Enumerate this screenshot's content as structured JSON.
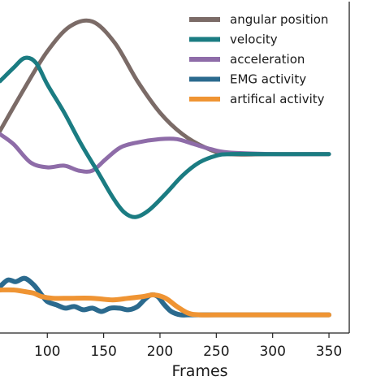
{
  "chart_data": {
    "type": "line",
    "xlabel": "Frames",
    "ylabel": "",
    "title": "",
    "xlim": [
      58,
      368
    ],
    "ylim": [
      -1.0,
      1.0
    ],
    "xticks": [
      100,
      150,
      200,
      250,
      300,
      350
    ],
    "grid": false,
    "legend_position": "top-right",
    "series": [
      {
        "name": "angular position",
        "color": "#7b6b67",
        "width": 5,
        "points": [
          [
            58,
            0.22
          ],
          [
            80,
            0.48
          ],
          [
            100,
            0.7
          ],
          [
            120,
            0.85
          ],
          [
            140,
            0.88
          ],
          [
            160,
            0.75
          ],
          [
            180,
            0.52
          ],
          [
            200,
            0.33
          ],
          [
            220,
            0.2
          ],
          [
            240,
            0.12
          ],
          [
            260,
            0.08
          ],
          [
            300,
            0.08
          ],
          [
            350,
            0.08
          ]
        ]
      },
      {
        "name": "velocity",
        "color": "#1b7c82",
        "width": 5,
        "points": [
          [
            58,
            0.52
          ],
          [
            70,
            0.6
          ],
          [
            80,
            0.66
          ],
          [
            90,
            0.63
          ],
          [
            100,
            0.5
          ],
          [
            115,
            0.33
          ],
          [
            130,
            0.14
          ],
          [
            145,
            -0.03
          ],
          [
            158,
            -0.18
          ],
          [
            168,
            -0.27
          ],
          [
            178,
            -0.3
          ],
          [
            190,
            -0.26
          ],
          [
            205,
            -0.16
          ],
          [
            220,
            -0.05
          ],
          [
            235,
            0.03
          ],
          [
            250,
            0.07
          ],
          [
            262,
            0.08
          ],
          [
            300,
            0.08
          ],
          [
            350,
            0.08
          ]
        ]
      },
      {
        "name": "acceleration",
        "color": "#8e6ca8",
        "width": 5,
        "points": [
          [
            58,
            0.2
          ],
          [
            70,
            0.14
          ],
          [
            85,
            0.03
          ],
          [
            100,
            0.0
          ],
          [
            115,
            0.01
          ],
          [
            128,
            -0.02
          ],
          [
            140,
            -0.02
          ],
          [
            152,
            0.05
          ],
          [
            165,
            0.12
          ],
          [
            180,
            0.15
          ],
          [
            200,
            0.17
          ],
          [
            215,
            0.17
          ],
          [
            230,
            0.14
          ],
          [
            245,
            0.11
          ],
          [
            260,
            0.09
          ],
          [
            300,
            0.08
          ],
          [
            350,
            0.08
          ]
        ]
      },
      {
        "name": "EMG activity",
        "color": "#2b6a8e",
        "width": 6,
        "points": [
          [
            58,
            -0.72
          ],
          [
            65,
            -0.68
          ],
          [
            72,
            -0.69
          ],
          [
            80,
            -0.67
          ],
          [
            88,
            -0.71
          ],
          [
            95,
            -0.77
          ],
          [
            100,
            -0.81
          ],
          [
            108,
            -0.83
          ],
          [
            116,
            -0.85
          ],
          [
            124,
            -0.84
          ],
          [
            132,
            -0.86
          ],
          [
            140,
            -0.85
          ],
          [
            148,
            -0.87
          ],
          [
            156,
            -0.85
          ],
          [
            164,
            -0.85
          ],
          [
            172,
            -0.86
          ],
          [
            180,
            -0.84
          ],
          [
            186,
            -0.8
          ],
          [
            192,
            -0.77
          ],
          [
            198,
            -0.78
          ],
          [
            204,
            -0.83
          ],
          [
            210,
            -0.87
          ],
          [
            218,
            -0.89
          ],
          [
            225,
            -0.89
          ],
          [
            232,
            -0.89
          ],
          [
            240,
            -0.89
          ],
          [
            300,
            -0.89
          ],
          [
            350,
            -0.89
          ]
        ]
      },
      {
        "name": "artifical activity",
        "color": "#ef9433",
        "width": 6,
        "points": [
          [
            58,
            -0.74
          ],
          [
            70,
            -0.74
          ],
          [
            80,
            -0.75
          ],
          [
            88,
            -0.76
          ],
          [
            95,
            -0.78
          ],
          [
            105,
            -0.79
          ],
          [
            120,
            -0.79
          ],
          [
            140,
            -0.79
          ],
          [
            158,
            -0.8
          ],
          [
            172,
            -0.79
          ],
          [
            185,
            -0.78
          ],
          [
            195,
            -0.77
          ],
          [
            205,
            -0.79
          ],
          [
            215,
            -0.84
          ],
          [
            225,
            -0.88
          ],
          [
            235,
            -0.89
          ],
          [
            260,
            -0.89
          ],
          [
            300,
            -0.89
          ],
          [
            350,
            -0.89
          ]
        ]
      }
    ]
  }
}
